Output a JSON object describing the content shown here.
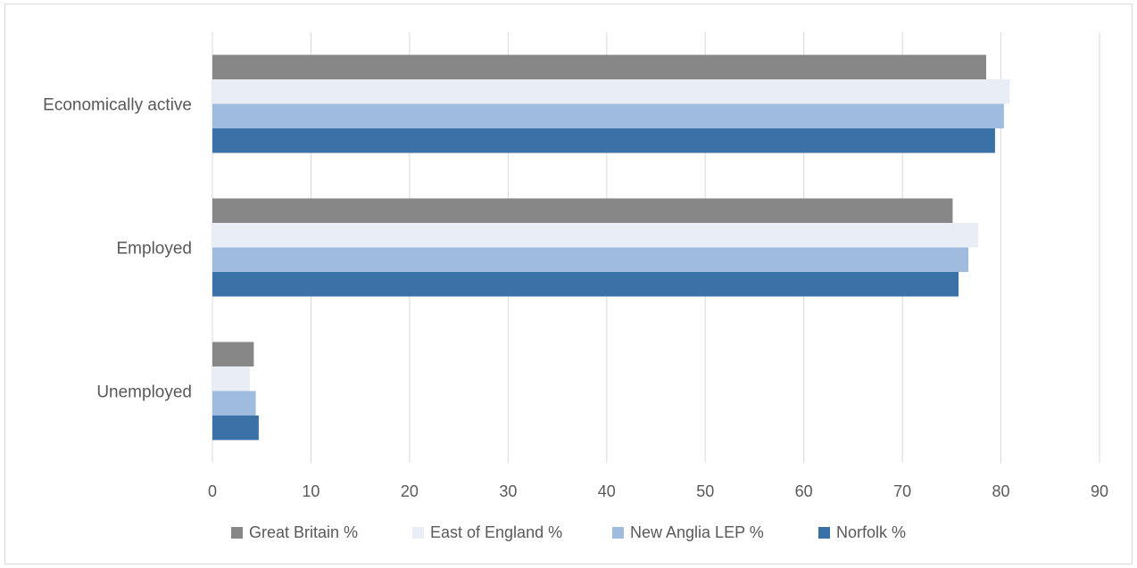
{
  "chart_data": {
    "type": "bar",
    "orientation": "horizontal",
    "categories": [
      "Economically active",
      "Employed",
      "Unemployed"
    ],
    "series": [
      {
        "name": "Great Britain %",
        "values": [
          78.5,
          75.1,
          4.2
        ],
        "color": "#878787"
      },
      {
        "name": "East of England %",
        "values": [
          80.9,
          77.7,
          3.8
        ],
        "color": "#e8edf6"
      },
      {
        "name": "New Anglia LEP %",
        "values": [
          80.3,
          76.7,
          4.4
        ],
        "color": "#9fbbde"
      },
      {
        "name": "Norfolk %",
        "values": [
          79.4,
          75.7,
          4.7
        ],
        "color": "#3a72a8"
      }
    ],
    "xlim": [
      0,
      90
    ],
    "xticks": [
      0,
      10,
      20,
      30,
      40,
      50,
      60,
      70,
      80,
      90
    ],
    "grid": true,
    "legend_position": "bottom",
    "title": "",
    "xlabel": "",
    "ylabel": ""
  }
}
